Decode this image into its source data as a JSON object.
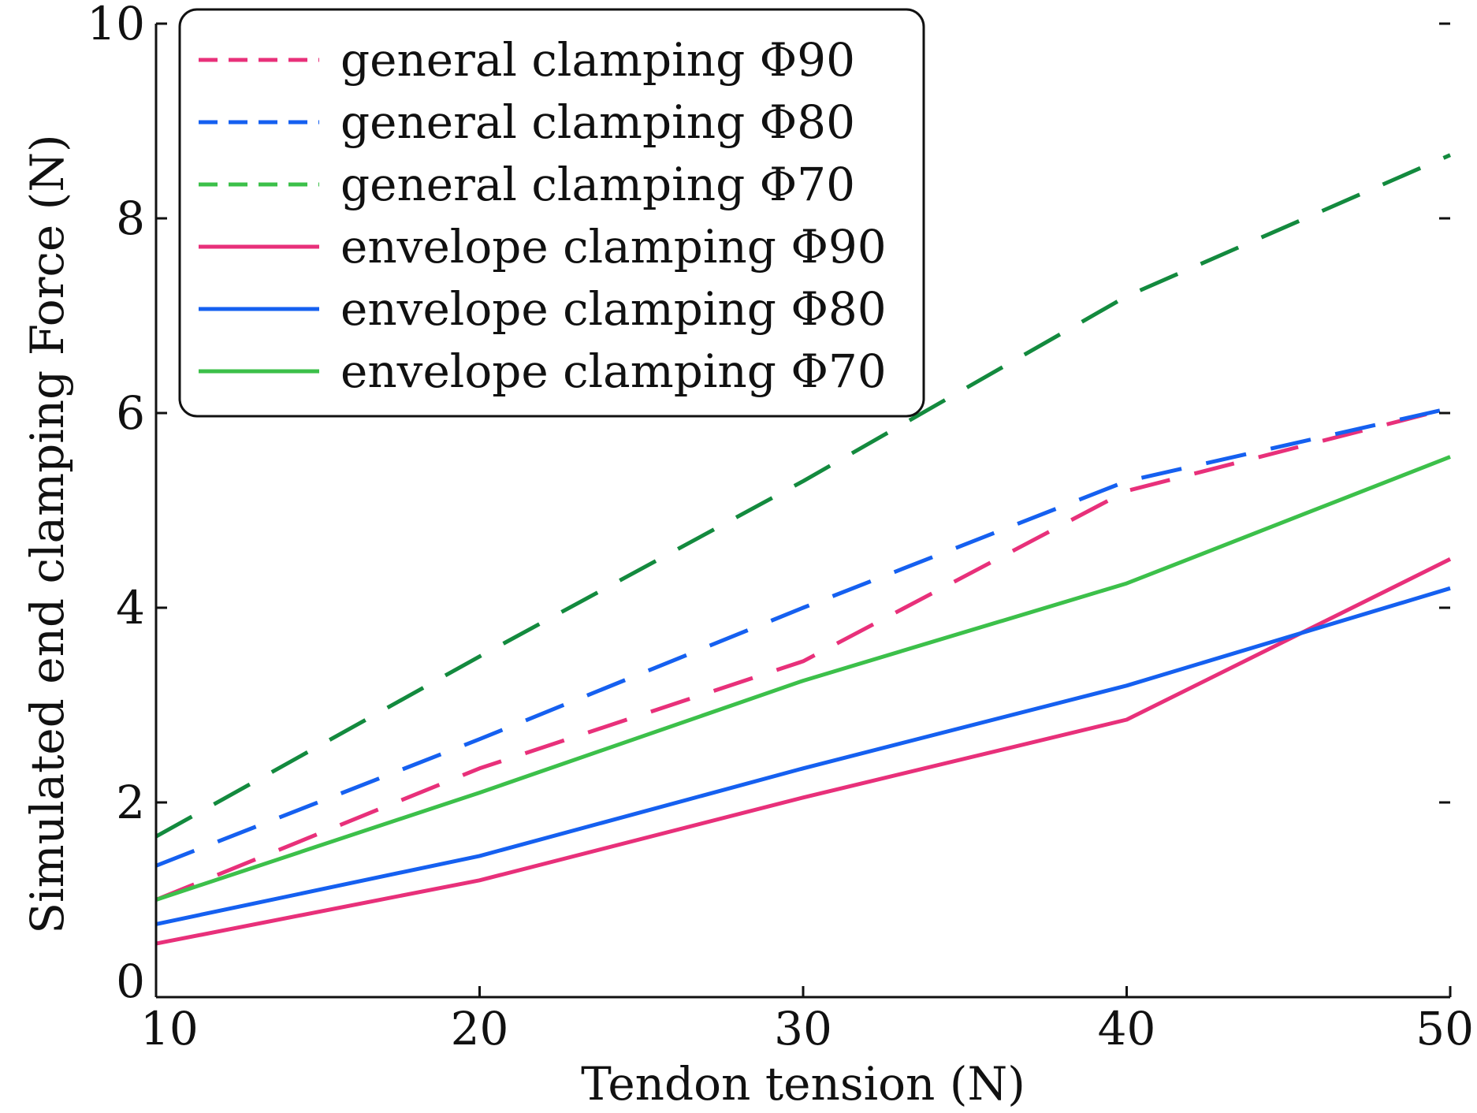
{
  "chart_data": {
    "type": "line",
    "title": "",
    "xlabel": "Tendon tension (N)",
    "ylabel": "Simulated end clamping Force (N)",
    "xlim": [
      10,
      50
    ],
    "ylim": [
      0,
      10
    ],
    "xticks": [
      10,
      20,
      30,
      40,
      50
    ],
    "xtick_labels": [
      "10",
      "20",
      "30",
      "40",
      "50"
    ],
    "yticks": [
      0,
      2,
      4,
      6,
      8,
      10
    ],
    "ytick_labels": [
      "0",
      "2",
      "4",
      "6",
      "8",
      "10"
    ],
    "grid": false,
    "legend_position": "top-left",
    "x": [
      10,
      20,
      30,
      40,
      50
    ],
    "series": [
      {
        "name": "general clamping Φ90",
        "style": "dashed",
        "legend_color": "#e8307a",
        "color": "#e8307a",
        "values": [
          1.0,
          2.35,
          3.45,
          5.2,
          6.05
        ]
      },
      {
        "name": "general clamping Φ80",
        "style": "dashed",
        "legend_color": "#1560f0",
        "color": "#1560f0",
        "values": [
          1.35,
          2.65,
          4.0,
          5.3,
          6.05
        ]
      },
      {
        "name": "general clamping Φ70",
        "style": "dashed",
        "legend_color": "#3cc04a",
        "color": "#138a3e",
        "values": [
          1.65,
          3.5,
          5.3,
          7.2,
          8.65
        ]
      },
      {
        "name": "envelope clamping Φ90",
        "style": "solid",
        "legend_color": "#e8307a",
        "color": "#e8307a",
        "values": [
          0.55,
          1.2,
          2.05,
          2.85,
          4.5
        ]
      },
      {
        "name": "envelope clamping Φ80",
        "style": "solid",
        "legend_color": "#1560f0",
        "color": "#1560f0",
        "values": [
          0.75,
          1.45,
          2.35,
          3.2,
          4.2
        ]
      },
      {
        "name": "envelope clamping Φ70",
        "style": "solid",
        "legend_color": "#3cc04a",
        "color": "#3cc04a",
        "values": [
          1.0,
          2.1,
          3.25,
          4.25,
          5.55
        ]
      }
    ]
  }
}
